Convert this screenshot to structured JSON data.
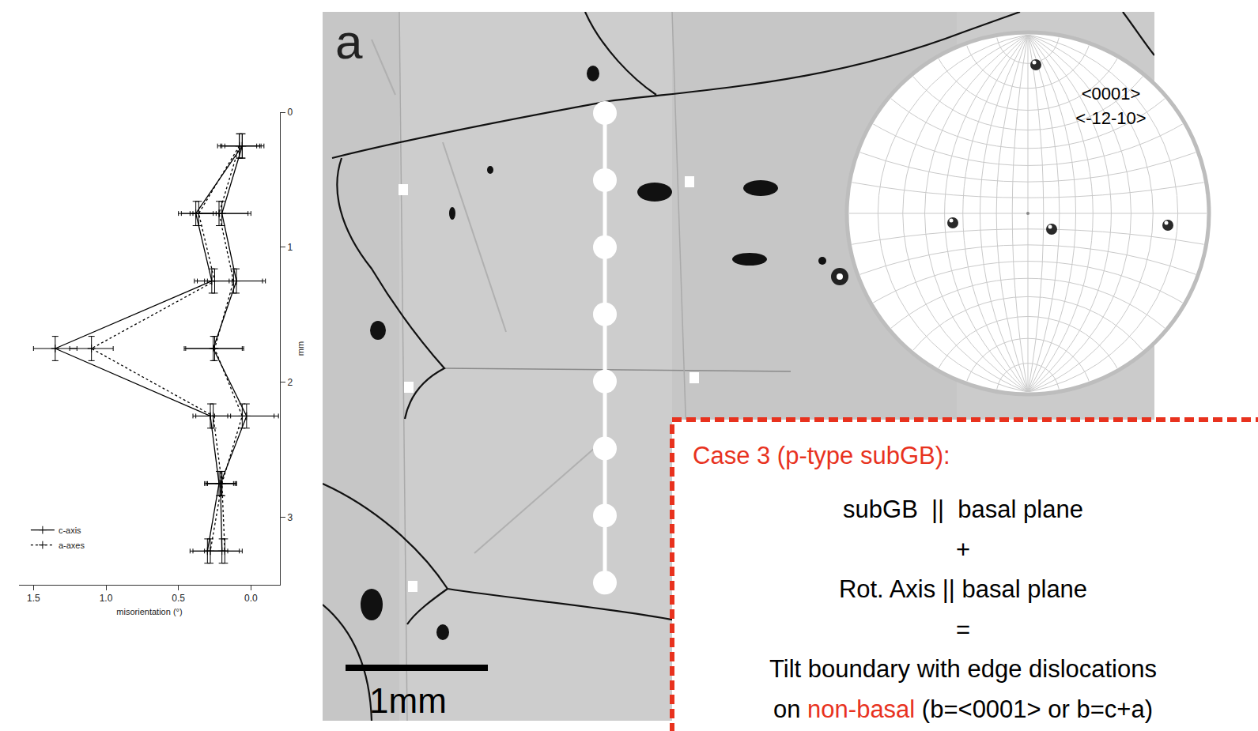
{
  "chart_data": {
    "type": "line",
    "x_label": "misorientation (°)",
    "y_label": "mm",
    "y": [
      0.25,
      0.75,
      1.25,
      1.75,
      2.25,
      2.75,
      3.25
    ],
    "series": [
      {
        "name": "c-axis",
        "color": "#000000",
        "line_style": "solid",
        "marker": "cross",
        "values": [
          0.06,
          0.38,
          0.27,
          1.35,
          0.28,
          0.22,
          0.3
        ],
        "x_error": [
          0.15,
          0.12,
          0.12,
          0.15,
          0.12,
          0.1,
          0.12
        ],
        "y_error": [
          0.09,
          0.09,
          0.09,
          0.09,
          0.09,
          0.09,
          0.09
        ]
      },
      {
        "name": "a-axes",
        "color": "#000000",
        "line_style": "dotted",
        "marker": "cross",
        "values": [
          0.08,
          0.36,
          0.25,
          1.1,
          0.26,
          0.2,
          0.28
        ],
        "x_error": [
          0.15,
          0.12,
          0.12,
          0.15,
          0.12,
          0.1,
          0.12
        ],
        "y_error": [
          0.09,
          0.09,
          0.09,
          0.09,
          0.09,
          0.09,
          0.09
        ]
      },
      {
        "name": "c-axis",
        "color": "#000000",
        "line_style": "solid",
        "marker": "cross",
        "values": [
          0.06,
          0.2,
          0.1,
          0.26,
          0.03,
          0.21,
          0.2
        ],
        "x_error": [
          0.12,
          0.2,
          0.2,
          0.2,
          0.22,
          0.1,
          0.12
        ],
        "y_error": [
          0.09,
          0.09,
          0.09,
          0.09,
          0.09,
          0.09,
          0.09
        ]
      },
      {
        "name": "a-axes",
        "color": "#000000",
        "line_style": "dotted",
        "marker": "cross",
        "values": [
          0.08,
          0.22,
          0.12,
          0.25,
          0.06,
          0.2,
          0.18
        ],
        "x_error": [
          0.12,
          0.2,
          0.2,
          0.2,
          0.22,
          0.1,
          0.12
        ],
        "y_error": [
          0.09,
          0.09,
          0.09,
          0.09,
          0.09,
          0.09,
          0.09
        ]
      }
    ],
    "xlim": [
      1.6,
      -0.2
    ],
    "xticks": [
      {
        "value": 1.5,
        "label": "1.5"
      },
      {
        "value": 1,
        "label": "1.0"
      },
      0.5,
      {
        "value": 0,
        "label": "0.0"
      }
    ],
    "ylim": [
      3.5,
      0
    ],
    "yticks": [
      0,
      1,
      2,
      3
    ],
    "grid": false,
    "legend": "lower left"
  },
  "panel_label": "a",
  "micrograph": {
    "scale_bar": "1mm"
  },
  "stereonet": {
    "labels": [
      "<0001>",
      "<-12-10>"
    ]
  },
  "text_box": {
    "title": "Case 3 (p-type subGB):",
    "lines": [
      [
        {
          "text": "subGB  ||  basal plane"
        }
      ],
      [
        {
          "text": "+"
        }
      ],
      [
        {
          "text": "Rot. Axis || basal plane"
        }
      ],
      [
        {
          "text": "="
        }
      ],
      [
        {
          "text": "Tilt boundary with edge dislocations"
        }
      ],
      [
        {
          "text": "on "
        },
        {
          "text": "non-basal",
          "highlight": true
        },
        {
          "text": " (b=<0001> or b=c+a)"
        }
      ]
    ]
  }
}
